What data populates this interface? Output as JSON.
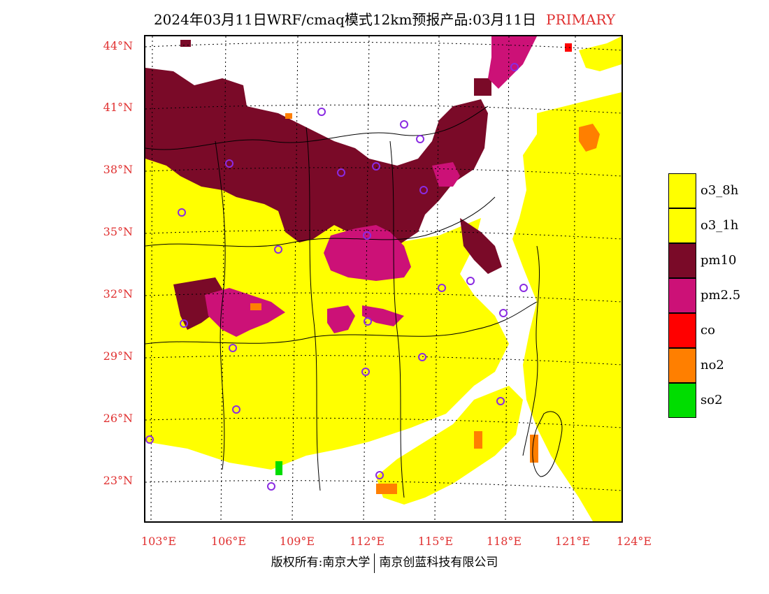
{
  "header": {
    "title": "2024年03月11日WRF/cmaq模式12km预报产品:03月11日",
    "primary_label": "PRIMARY"
  },
  "axes": {
    "lat_labels": [
      "44°N",
      "41°N",
      "38°N",
      "35°N",
      "32°N",
      "29°N",
      "26°N",
      "23°N"
    ],
    "lon_labels": [
      "103°E",
      "106°E",
      "109°E",
      "112°E",
      "115°E",
      "118°E",
      "121°E",
      "124°E"
    ]
  },
  "legend": {
    "items": [
      {
        "label": "o3_8h",
        "color": "#ffff00"
      },
      {
        "label": "o3_1h",
        "color": "#ffff00"
      },
      {
        "label": "pm10",
        "color": "#7a0a28"
      },
      {
        "label": "pm2.5",
        "color": "#cc1177"
      },
      {
        "label": "co",
        "color": "#ff0000"
      },
      {
        "label": "no2",
        "color": "#ff7f00"
      },
      {
        "label": "so2",
        "color": "#00dd00"
      }
    ]
  },
  "footer": {
    "left": "版权所有:南京大学",
    "right": "南京创蓝科技有限公司"
  },
  "colors": {
    "o3": "#ffff00",
    "pm10": "#7a0a28",
    "pm25": "#cc1177",
    "co": "#ff0000",
    "no2": "#ff7f00",
    "so2": "#00dd00",
    "station": "#8a2be2",
    "label_red": "#e03030"
  }
}
